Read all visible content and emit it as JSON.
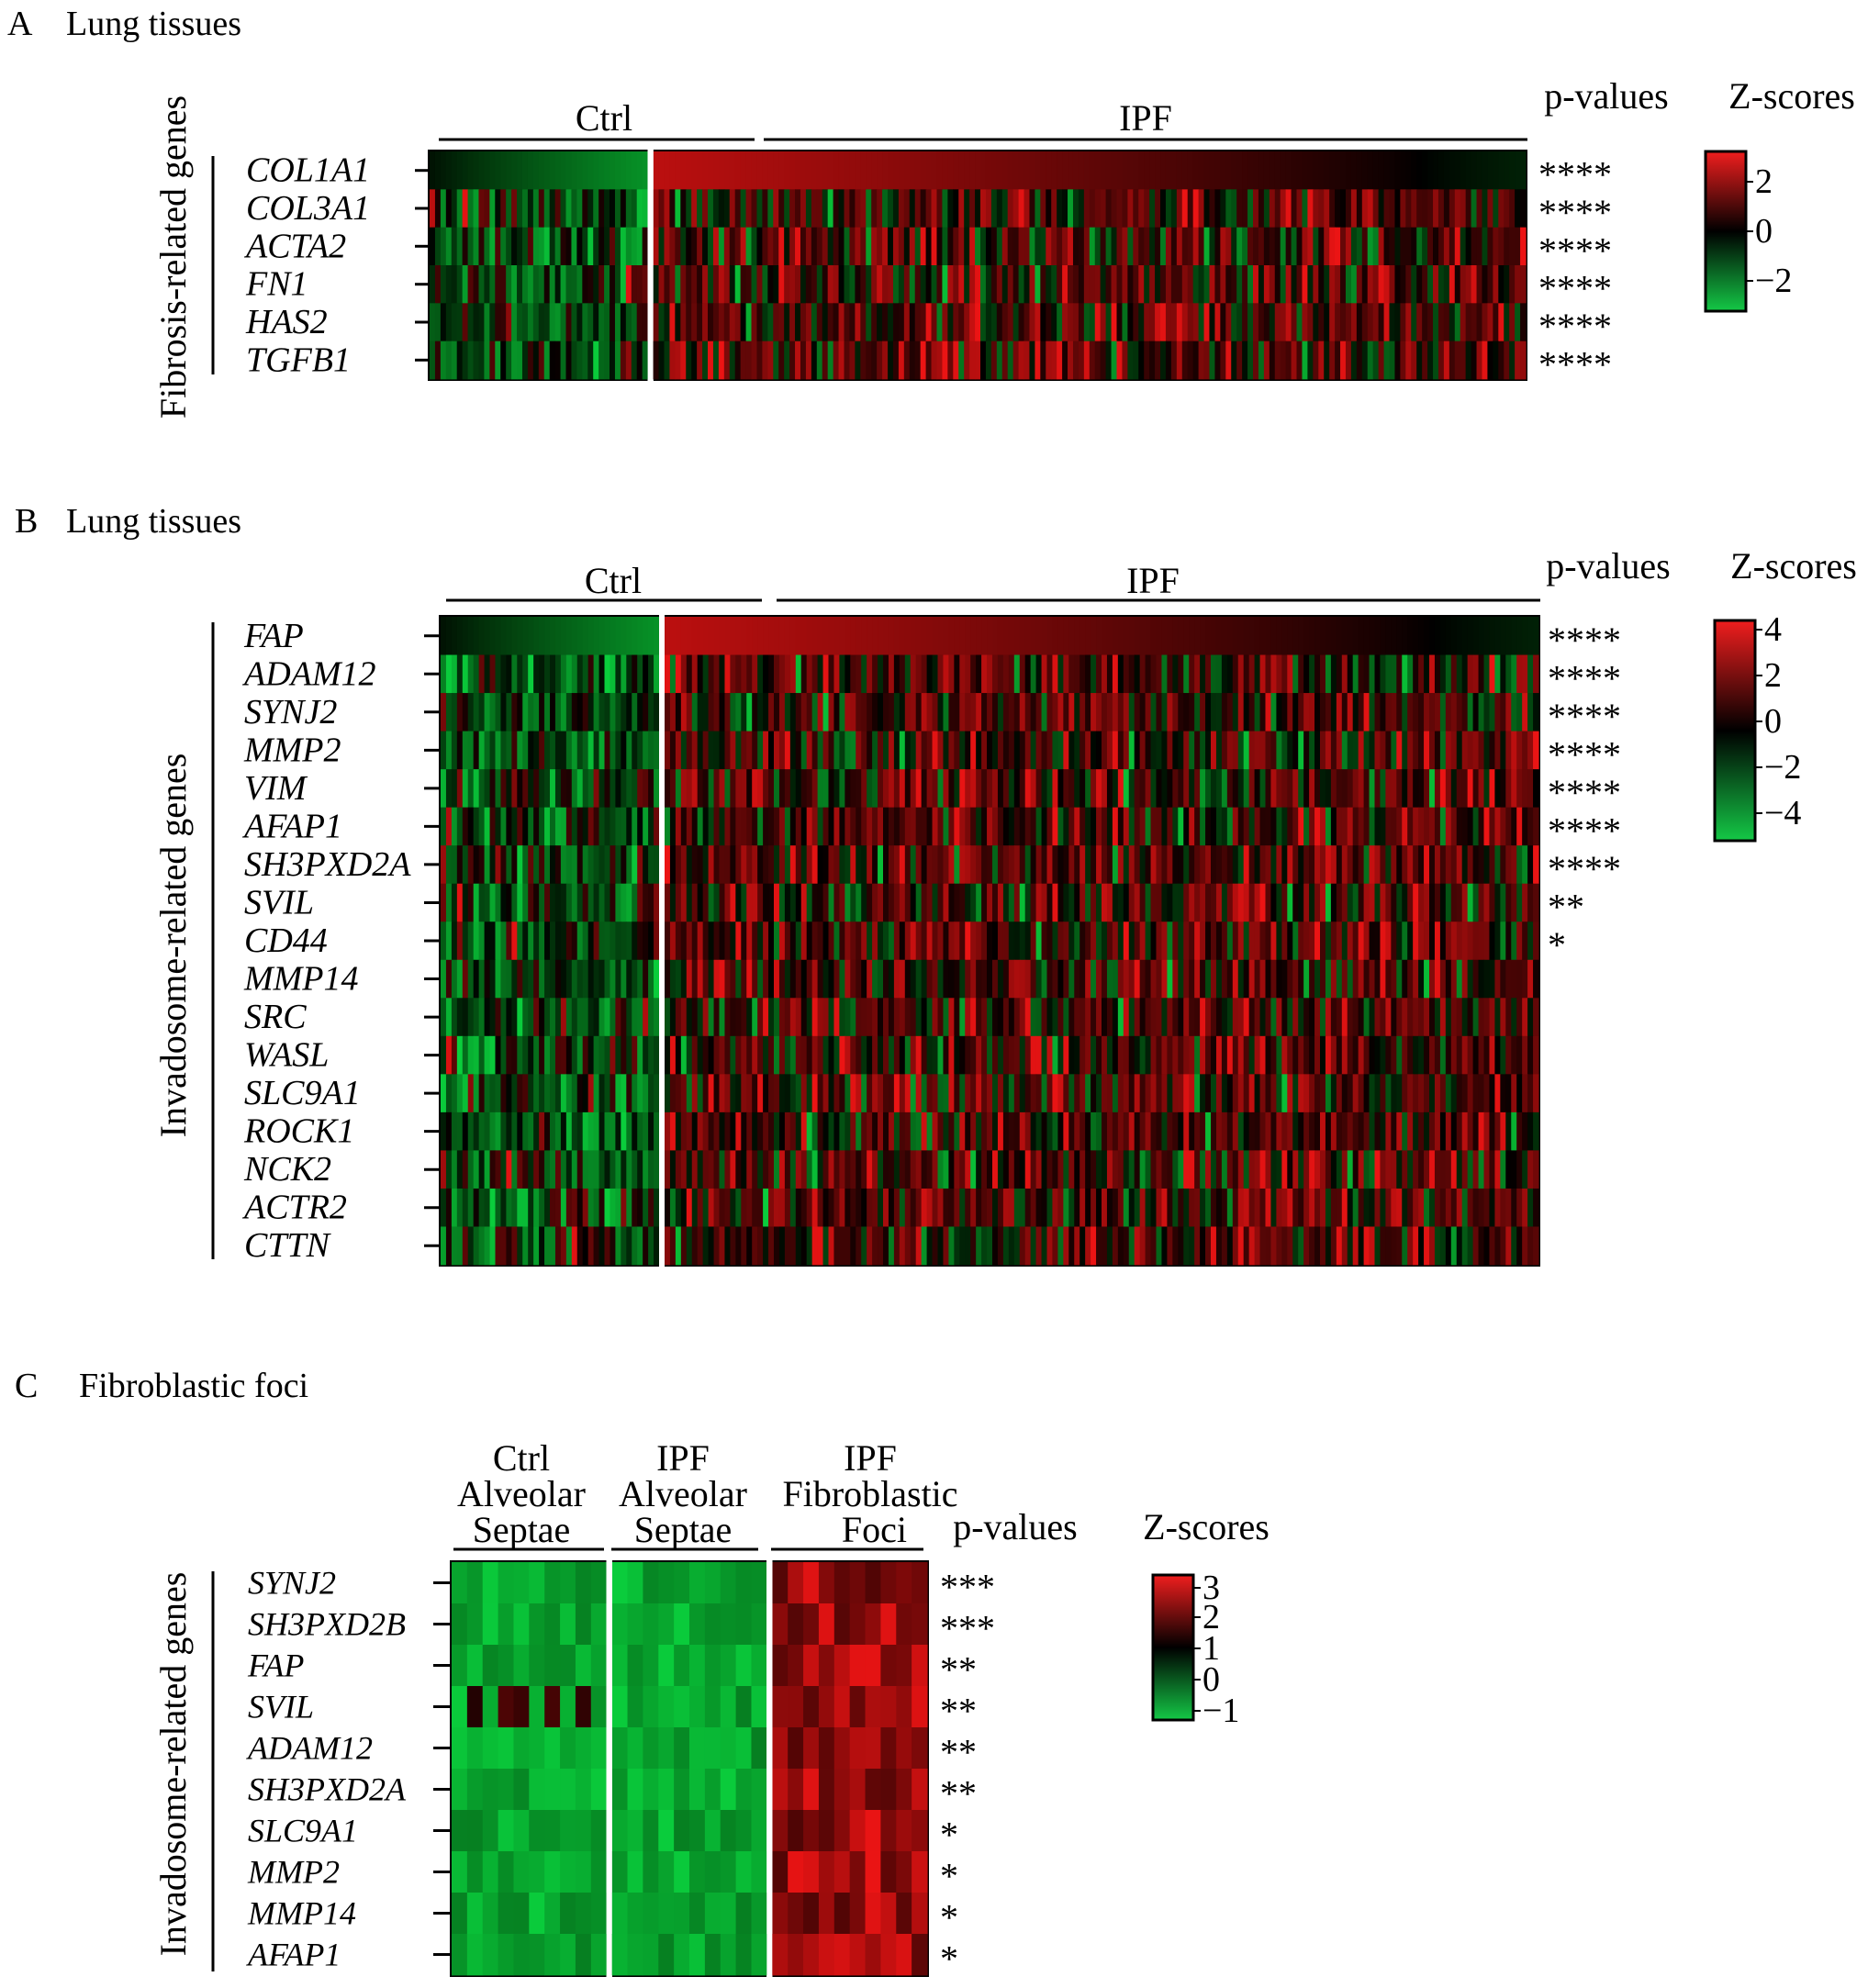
{
  "chart_data": [
    {
      "type": "heatmap",
      "panel": "A",
      "title": "Lung tissues",
      "ylabel": "Fibrosis-related genes",
      "groups": [
        {
          "name": "Ctrl",
          "n_samples": 40
        },
        {
          "name": "IPF",
          "n_samples": 160
        }
      ],
      "genes": [
        "COL1A1",
        "COL3A1",
        "ACTA2",
        "FN1",
        "HAS2",
        "TGFB1"
      ],
      "p_values": [
        "****",
        "****",
        "****",
        "****",
        "****",
        "****"
      ],
      "p_values_header": "p-values",
      "legend": {
        "title": "Z-scores",
        "ticks": [
          "2",
          "0",
          "−2"
        ],
        "range": [
          -3,
          3
        ]
      },
      "first_row_sorted": true
    },
    {
      "type": "heatmap",
      "panel": "B",
      "title": "Lung tissues",
      "ylabel": "Invadosome-related genes",
      "groups": [
        {
          "name": "Ctrl",
          "n_samples": 40
        },
        {
          "name": "IPF",
          "n_samples": 160
        }
      ],
      "genes": [
        "FAP",
        "ADAM12",
        "SYNJ2",
        "MMP2",
        "VIM",
        "AFAP1",
        "SH3PXD2A",
        "SVIL",
        "CD44",
        "MMP14",
        "SRC",
        "WASL",
        "SLC9A1",
        "ROCK1",
        "NCK2",
        "ACTR2",
        "CTTN"
      ],
      "p_values": [
        "****",
        "****",
        "****",
        "****",
        "****",
        "****",
        "****",
        "**",
        "*",
        "",
        "",
        "",
        "",
        "",
        "",
        "",
        ""
      ],
      "p_values_header": "p-values",
      "legend": {
        "title": "Z-scores",
        "ticks": [
          "4",
          "2",
          "0",
          "−2",
          "−4"
        ],
        "range": [
          -5,
          5
        ]
      },
      "first_row_sorted": true
    },
    {
      "type": "heatmap",
      "panel": "C",
      "title": "Fibroblastic foci",
      "ylabel": "Invadosome-related genes",
      "groups": [
        {
          "name": [
            "Ctrl",
            "Alveolar",
            "Septae"
          ],
          "n_samples": 10
        },
        {
          "name": [
            "IPF",
            "Alveolar",
            "Septae"
          ],
          "n_samples": 10
        },
        {
          "name": [
            "IPF",
            "Fibroblastic",
            "Foci"
          ],
          "n_samples": 10
        }
      ],
      "genes": [
        "SYNJ2",
        "SH3PXD2B",
        "FAP",
        "SVIL",
        "ADAM12",
        "SH3PXD2A",
        "SLC9A1",
        "MMP2",
        "MMP14",
        "AFAP1"
      ],
      "p_values": [
        "***",
        "***",
        "**",
        "**",
        "**",
        "**",
        "*",
        "*",
        "*",
        "*"
      ],
      "p_values_header": "p-values",
      "legend": {
        "title": "Z-scores",
        "ticks": [
          "3",
          "2",
          "1",
          "0",
          "−1"
        ],
        "range": [
          -1.2,
          3.2
        ]
      }
    }
  ]
}
